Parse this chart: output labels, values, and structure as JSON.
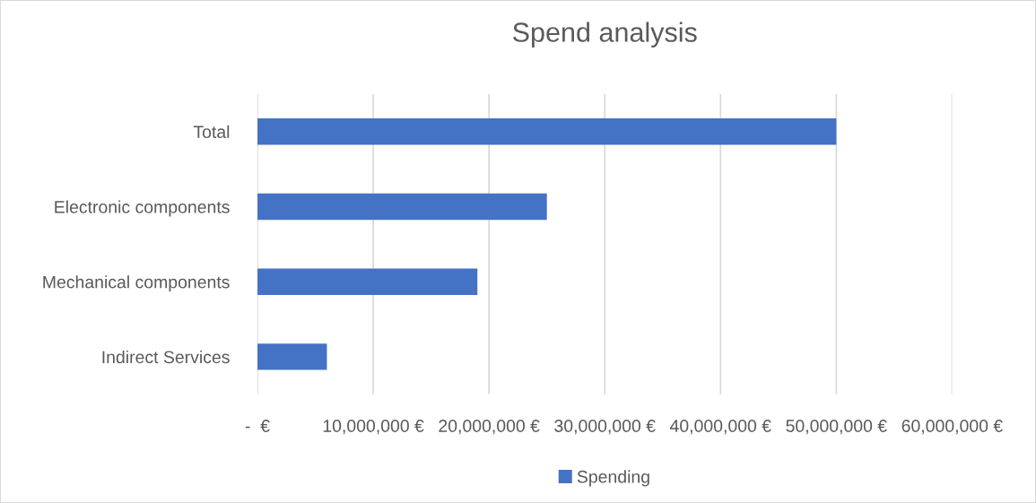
{
  "chart_data": {
    "type": "bar",
    "orientation": "horizontal",
    "title": "Spend analysis",
    "categories": [
      "Total",
      "Electronic components",
      "Mechanical components",
      "Indirect Services"
    ],
    "series": [
      {
        "name": "Spending",
        "color": "#4472c4",
        "values": [
          50000000,
          25000000,
          19000000,
          6000000
        ]
      }
    ],
    "xlim": [
      0,
      60000000
    ],
    "xticks": [
      {
        "value": 0,
        "label": "-  €"
      },
      {
        "value": 10000000,
        "label": "10,000,000 €"
      },
      {
        "value": 20000000,
        "label": "20,000,000 €"
      },
      {
        "value": 30000000,
        "label": "30,000,000 €"
      },
      {
        "value": 40000000,
        "label": "40,000,000 €"
      },
      {
        "value": 50000000,
        "label": "50,000,000 €"
      },
      {
        "value": 60000000,
        "label": "60,000,000 €"
      }
    ],
    "grid": "x",
    "legend": "bottom"
  }
}
